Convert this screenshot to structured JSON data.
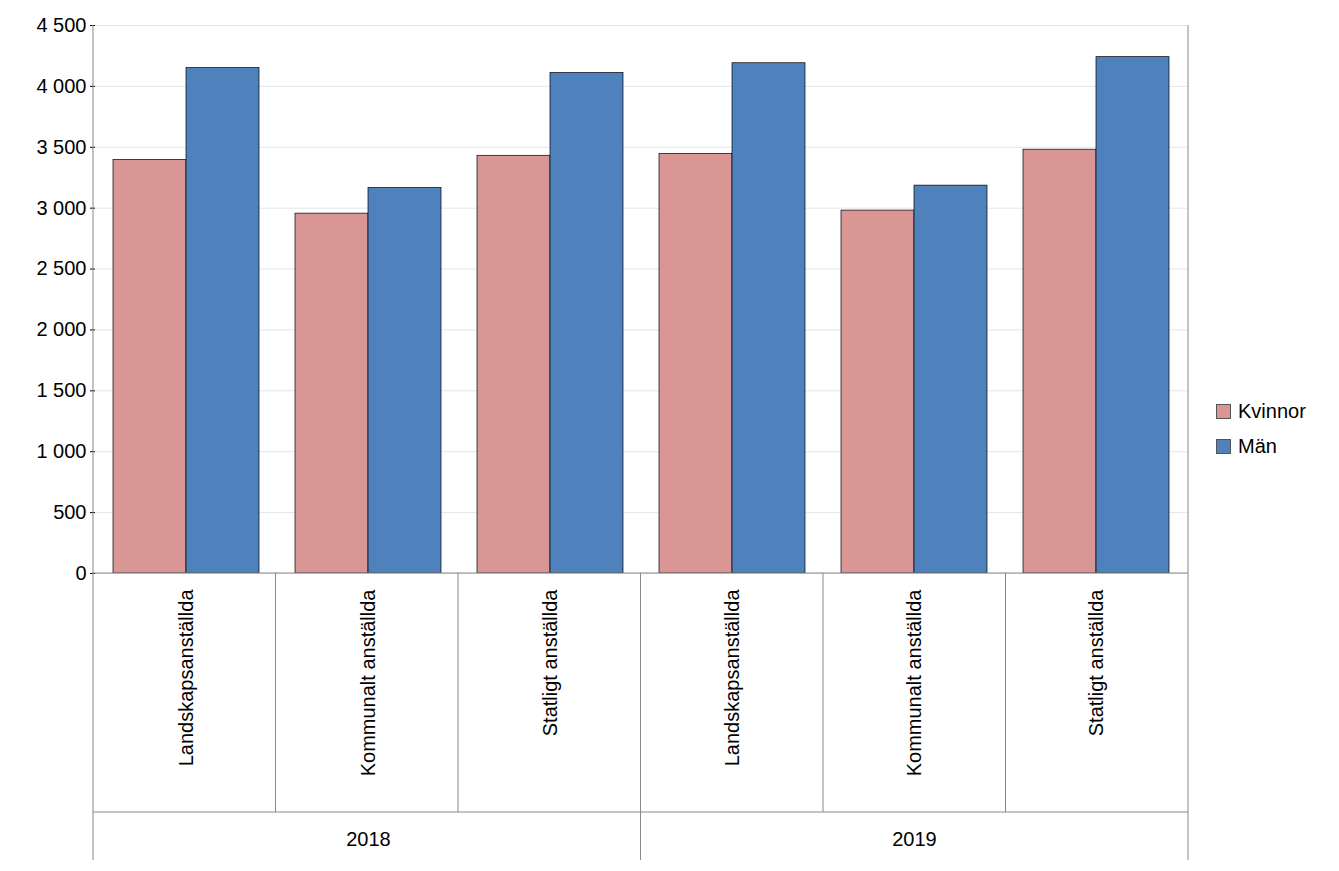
{
  "chart_data": {
    "type": "bar",
    "categories": [
      "Landskapsanställda",
      "Kommunalt anställda",
      "Statligt anställda",
      "Landskapsanställda",
      "Kommunalt anställda",
      "Statligt anställda"
    ],
    "category_groups": [
      "2018",
      "2018",
      "2018",
      "2019",
      "2019",
      "2019"
    ],
    "series": [
      {
        "name": "Kvinnor",
        "color": "#d99694",
        "values": [
          3395,
          2955,
          3430,
          3445,
          2980,
          3480
        ]
      },
      {
        "name": "Män",
        "color": "#4f81bd",
        "values": [
          4150,
          3165,
          4110,
          4190,
          3185,
          4240
        ]
      }
    ],
    "ylim": [
      0,
      4500
    ],
    "yticks": [
      0,
      500,
      {
        "value": 1000,
        "label": "1 000"
      },
      {
        "value": 1500,
        "label": "1 500"
      },
      {
        "value": 2000,
        "label": "2 000"
      },
      {
        "value": 2500,
        "label": "2 500"
      },
      {
        "value": 3000,
        "label": "3 000"
      },
      {
        "value": 3500,
        "label": "3 500"
      },
      {
        "value": 4000,
        "label": "4 000"
      },
      {
        "value": 4500,
        "label": "4 500"
      }
    ],
    "grid": true,
    "legend": "right"
  }
}
